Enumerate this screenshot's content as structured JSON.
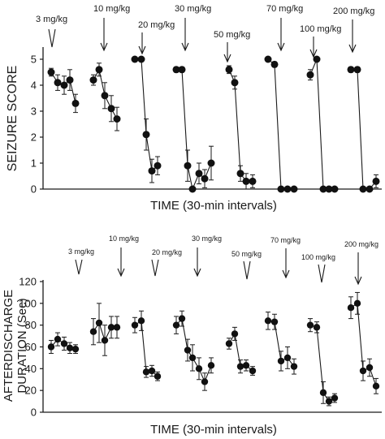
{
  "chart_data": [
    {
      "type": "scatter",
      "xlabel": "TIME (30-min intervals)",
      "ylabel": "SEIZURE SCORE",
      "ylim": [
        0,
        5.3
      ],
      "yticks": [
        "0",
        "1",
        "2",
        "3",
        "4",
        "5"
      ],
      "grid": false,
      "doses": [
        {
          "label": "3 mg/kg",
          "arrow": "open"
        },
        {
          "label": "10 mg/kg",
          "arrow": "line"
        },
        {
          "label": "20 mg/kg",
          "arrow": "line"
        },
        {
          "label": "30 mg/kg",
          "arrow": "line"
        },
        {
          "label": "50 mg/kg",
          "arrow": "line"
        },
        {
          "label": "70 mg/kg",
          "arrow": "line"
        },
        {
          "label": "100 mg/kg",
          "arrow": "line"
        },
        {
          "label": "200 mg/kg",
          "arrow": "line"
        }
      ],
      "groups": [
        {
          "dose": "3 mg/kg",
          "values": [
            4.5,
            4.1,
            4.0,
            4.2,
            3.3
          ],
          "errors": [
            0.15,
            0.3,
            0.35,
            0.4,
            0.35
          ]
        },
        {
          "dose": "10 mg/kg",
          "values": [
            4.2,
            4.6,
            3.6,
            3.1,
            2.7
          ],
          "errors": [
            0.2,
            0.25,
            0.5,
            0.5,
            0.45
          ]
        },
        {
          "dose": "20 mg/kg",
          "values": [
            5.0,
            5.0,
            2.1,
            0.7,
            0.9
          ],
          "errors": [
            0.0,
            0.0,
            0.6,
            0.45,
            0.35
          ]
        },
        {
          "dose": "30 mg/kg",
          "values": [
            4.6,
            4.6,
            0.9,
            0.0,
            0.6,
            0.4,
            1.0
          ],
          "errors": [
            0.1,
            0.1,
            0.6,
            0.0,
            0.4,
            0.35,
            0.65
          ]
        },
        {
          "dose": "50 mg/kg",
          "values": [
            4.6,
            4.1,
            0.6,
            0.3,
            0.3
          ],
          "errors": [
            0.15,
            0.25,
            0.3,
            0.3,
            0.25
          ]
        },
        {
          "dose": "70 mg/kg",
          "values": [
            5.0,
            4.8,
            0.0,
            0.0,
            0.0
          ],
          "errors": [
            0.0,
            0.1,
            0.0,
            0.0,
            0.0
          ]
        },
        {
          "dose": "100 mg/kg",
          "values": [
            4.4,
            5.0,
            0.0,
            0.0,
            0.0
          ],
          "errors": [
            0.2,
            0.0,
            0.0,
            0.0,
            0.0
          ]
        },
        {
          "dose": "200 mg/kg",
          "values": [
            4.6,
            4.6,
            0.0,
            0.0,
            0.3
          ],
          "errors": [
            0.1,
            0.1,
            0.0,
            0.0,
            0.25
          ]
        }
      ]
    },
    {
      "type": "scatter",
      "xlabel": "TIME (30-min intervals)",
      "ylabel": "AFTERDISCHARGE DURATION (Sec)",
      "ylabel_lines": [
        "AFTERDISCHARGE",
        "DURATION (Sec)"
      ],
      "ylim": [
        0,
        120
      ],
      "yticks": [
        "0",
        "20",
        "40",
        "60",
        "80",
        "100",
        "120"
      ],
      "grid": false,
      "doses": [
        {
          "label": "3 mg/kg",
          "arrow": "open"
        },
        {
          "label": "10 mg/kg",
          "arrow": "line"
        },
        {
          "label": "20 mg/kg",
          "arrow": "open"
        },
        {
          "label": "30 mg/kg",
          "arrow": "line"
        },
        {
          "label": "50 mg/kg",
          "arrow": "open"
        },
        {
          "label": "70 mg/kg",
          "arrow": "line"
        },
        {
          "label": "100 mg/kg",
          "arrow": "open"
        },
        {
          "label": "200 mg/kg",
          "arrow": "line"
        }
      ],
      "groups": [
        {
          "dose": "3 mg/kg",
          "values": [
            60,
            67,
            63,
            59,
            58
          ],
          "errors": [
            6,
            6,
            6,
            5,
            4
          ]
        },
        {
          "dose": "10 mg/kg",
          "values": [
            74,
            82,
            66,
            78,
            78
          ],
          "errors": [
            12,
            18,
            14,
            10,
            10
          ]
        },
        {
          "dose": "20 mg/kg",
          "values": [
            80,
            84,
            37,
            38,
            33
          ],
          "errors": [
            7,
            9,
            5,
            5,
            4
          ]
        },
        {
          "dose": "30 mg/kg",
          "values": [
            80,
            86,
            57,
            50,
            40,
            28,
            43
          ],
          "errors": [
            8,
            7,
            10,
            12,
            10,
            8,
            7
          ]
        },
        {
          "dose": "50 mg/kg",
          "values": [
            63,
            72,
            42,
            43,
            38
          ],
          "errors": [
            5,
            6,
            6,
            5,
            4
          ]
        },
        {
          "dose": "70 mg/kg",
          "values": [
            84,
            83,
            47,
            50,
            42
          ],
          "errors": [
            8,
            7,
            9,
            10,
            7
          ]
        },
        {
          "dose": "100 mg/kg",
          "values": [
            80,
            78,
            18,
            10,
            13
          ],
          "errors": [
            6,
            5,
            10,
            4,
            4
          ]
        },
        {
          "dose": "200 mg/kg",
          "values": [
            96,
            100,
            38,
            41,
            24
          ],
          "errors": [
            10,
            10,
            9,
            8,
            7
          ]
        }
      ]
    }
  ]
}
